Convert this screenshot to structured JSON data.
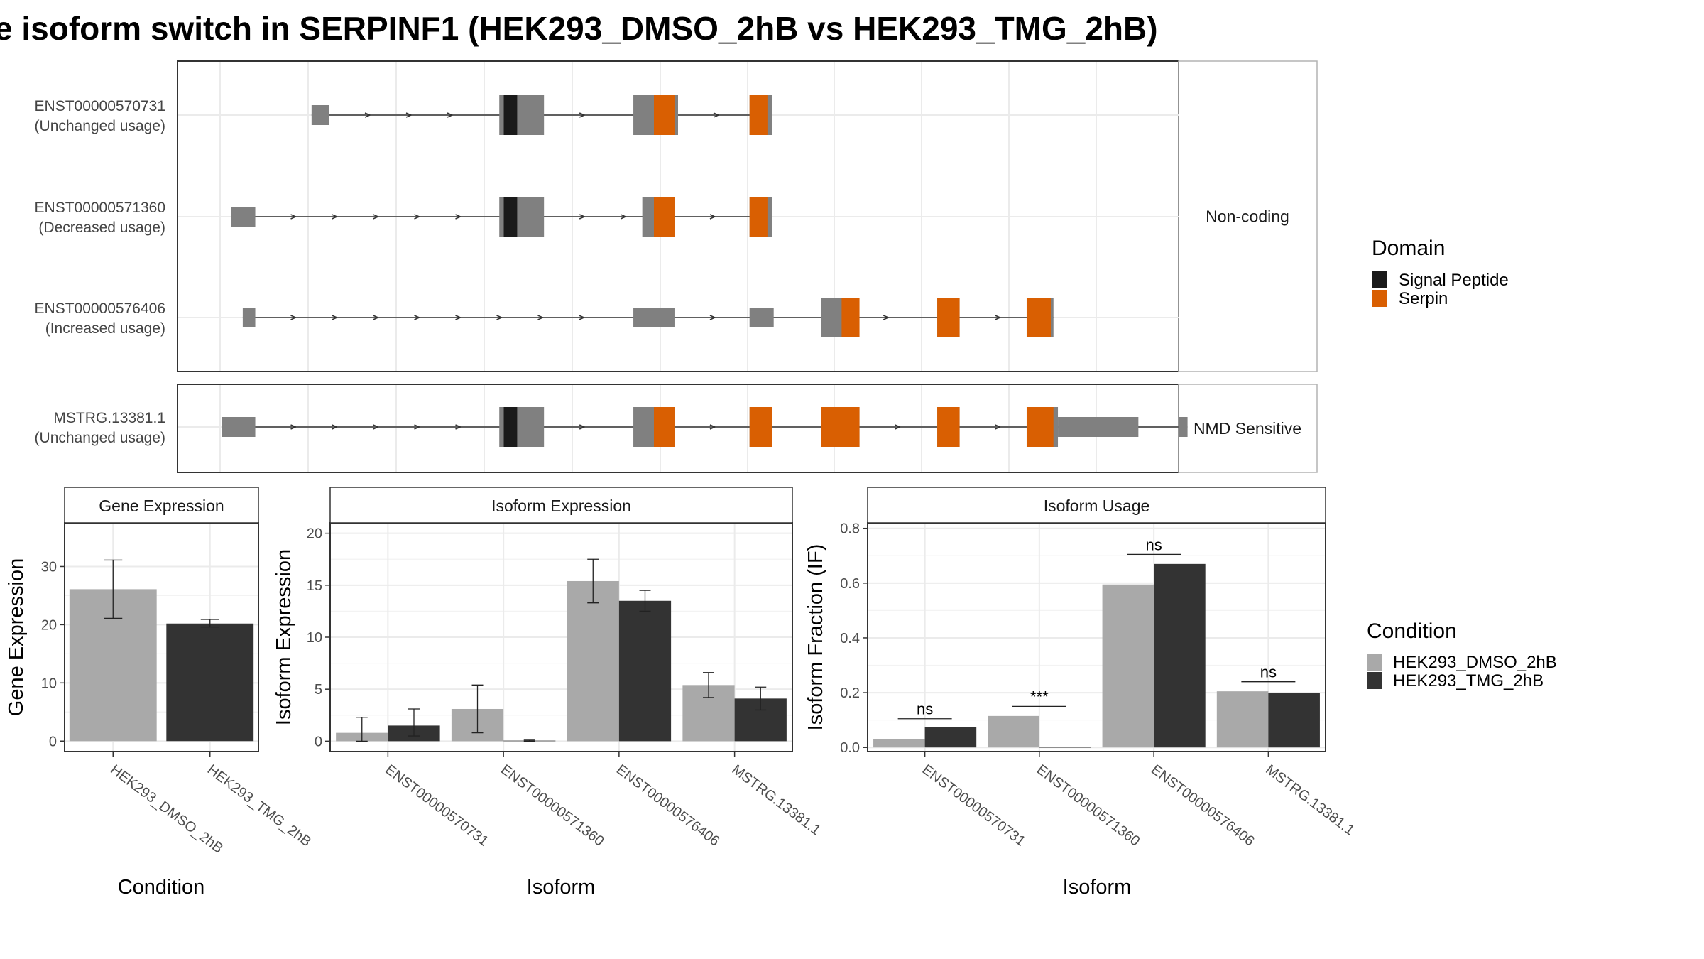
{
  "title": "e isoform switch in SERPINF1 (HEK293_DMSO_2hB vs HEK293_TMG_2hB)",
  "colors": {
    "exon": "#808080",
    "signal": "#1a1a1a",
    "serpin": "#d95f02",
    "cond1": "#a9a9a9",
    "cond2": "#333333",
    "strip_bg": "#ffffff",
    "grid": "#ebebeb"
  },
  "structure": {
    "facets": [
      "Non-coding",
      "NMD Sensitive"
    ],
    "isoforms": [
      {
        "id": "ENST00000570731",
        "usage": "(Unchanged usage)",
        "facet": 0,
        "exons": [
          [
            0.15,
            0.17,
            "utr"
          ],
          [
            0.36,
            0.41,
            "cds"
          ],
          [
            0.51,
            0.56,
            "cds"
          ],
          [
            0.64,
            0.665,
            "cds"
          ]
        ],
        "domains": [
          [
            0.365,
            0.38,
            "signal"
          ],
          [
            0.533,
            0.556,
            "serpin"
          ],
          [
            0.64,
            0.66,
            "serpin"
          ]
        ]
      },
      {
        "id": "ENST00000571360",
        "usage": "(Decreased usage)",
        "facet": 0,
        "exons": [
          [
            0.06,
            0.087,
            "utr"
          ],
          [
            0.36,
            0.41,
            "cds"
          ],
          [
            0.52,
            0.556,
            "cds"
          ],
          [
            0.64,
            0.665,
            "cds"
          ]
        ],
        "domains": [
          [
            0.365,
            0.38,
            "signal"
          ],
          [
            0.533,
            0.556,
            "serpin"
          ],
          [
            0.64,
            0.66,
            "serpin"
          ]
        ]
      },
      {
        "id": "ENST00000576406",
        "usage": "(Increased usage)",
        "facet": 0,
        "exons": [
          [
            0.073,
            0.087,
            "utr"
          ],
          [
            0.51,
            0.556,
            "utr"
          ],
          [
            0.64,
            0.667,
            "utr"
          ],
          [
            0.72,
            0.75,
            "cds"
          ],
          [
            0.85,
            0.875,
            "cds"
          ],
          [
            0.95,
            0.98,
            "cds"
          ]
        ],
        "domains": [
          [
            0.743,
            0.763,
            "serpin"
          ],
          [
            0.85,
            0.875,
            "serpin"
          ],
          [
            0.95,
            0.977,
            "serpin"
          ]
        ]
      },
      {
        "id": "MSTRG.13381.1",
        "usage": "(Unchanged usage)",
        "facet": 1,
        "exons": [
          [
            0.05,
            0.087,
            "utr"
          ],
          [
            0.36,
            0.41,
            "cds"
          ],
          [
            0.51,
            0.556,
            "cds"
          ],
          [
            0.64,
            0.665,
            "cds"
          ],
          [
            0.72,
            0.763,
            "cds"
          ],
          [
            0.85,
            0.875,
            "cds"
          ],
          [
            0.95,
            0.985,
            "cds"
          ],
          [
            0.985,
            1.03,
            "utr"
          ],
          [
            1.03,
            1.075,
            "utr"
          ],
          [
            1.12,
            1.13,
            "utr"
          ]
        ],
        "domains": [
          [
            0.365,
            0.38,
            "signal"
          ],
          [
            0.533,
            0.556,
            "serpin"
          ],
          [
            0.64,
            0.665,
            "serpin"
          ],
          [
            0.72,
            0.763,
            "serpin"
          ],
          [
            0.85,
            0.875,
            "serpin"
          ],
          [
            0.95,
            0.98,
            "serpin"
          ]
        ]
      }
    ]
  },
  "legend_domain": {
    "title": "Domain",
    "items": [
      {
        "label": "Signal Peptide",
        "color": "#1a1a1a"
      },
      {
        "label": "Serpin",
        "color": "#d95f02"
      }
    ]
  },
  "legend_condition": {
    "title": "Condition",
    "items": [
      {
        "label": "HEK293_DMSO_2hB",
        "color": "#a9a9a9"
      },
      {
        "label": "HEK293_TMG_2hB",
        "color": "#333333"
      }
    ]
  },
  "chart_data": [
    {
      "type": "bar",
      "strip": "Gene Expression",
      "xlabel": "Condition",
      "ylabel": "Gene Expression",
      "ylim": [
        -1.8,
        37.5
      ],
      "yticks": [
        0,
        10,
        20,
        30
      ],
      "categories": [
        "HEK293_DMSO_2hB",
        "HEK293_TMG_2hB"
      ],
      "values": [
        26.1,
        20.2
      ],
      "err_low": [
        21.1,
        19.6
      ],
      "err_high": [
        31.1,
        20.9
      ]
    },
    {
      "type": "bar",
      "strip": "Isoform Expression",
      "xlabel": "Isoform",
      "ylabel": "Isoform Expression",
      "ylim": [
        -1.0,
        21.0
      ],
      "yticks": [
        0,
        5,
        10,
        15,
        20
      ],
      "categories": [
        "ENST00000570731",
        "ENST00000571360",
        "ENST00000576406",
        "MSTRG.13381.1"
      ],
      "series": [
        {
          "name": "HEK293_DMSO_2hB",
          "values": [
            0.8,
            3.1,
            15.4,
            5.4
          ],
          "err_low": [
            0,
            0.8,
            13.3,
            4.2
          ],
          "err_high": [
            2.3,
            5.4,
            17.5,
            6.6
          ]
        },
        {
          "name": "HEK293_TMG_2hB",
          "values": [
            1.5,
            0.05,
            13.5,
            4.1
          ],
          "err_low": [
            0.5,
            0.0,
            12.5,
            3.0
          ],
          "err_high": [
            3.1,
            0.1,
            14.5,
            5.2
          ]
        }
      ]
    },
    {
      "type": "bar",
      "strip": "Isoform Usage",
      "xlabel": "Isoform",
      "ylabel": "Isoform Fraction (IF)",
      "ylim": [
        -0.015,
        0.82
      ],
      "yticks": [
        0.0,
        0.2,
        0.4,
        0.6,
        0.8
      ],
      "categories": [
        "ENST00000570731",
        "ENST00000571360",
        "ENST00000576406",
        "MSTRG.13381.1"
      ],
      "series": [
        {
          "name": "HEK293_DMSO_2hB",
          "values": [
            0.03,
            0.115,
            0.595,
            0.205
          ]
        },
        {
          "name": "HEK293_TMG_2hB",
          "values": [
            0.075,
            0.0,
            0.67,
            0.2
          ]
        }
      ],
      "significance": [
        {
          "label": "ns",
          "y": 0.105
        },
        {
          "label": "***",
          "y": 0.15
        },
        {
          "label": "ns",
          "y": 0.705
        },
        {
          "label": "ns",
          "y": 0.24
        }
      ]
    }
  ]
}
